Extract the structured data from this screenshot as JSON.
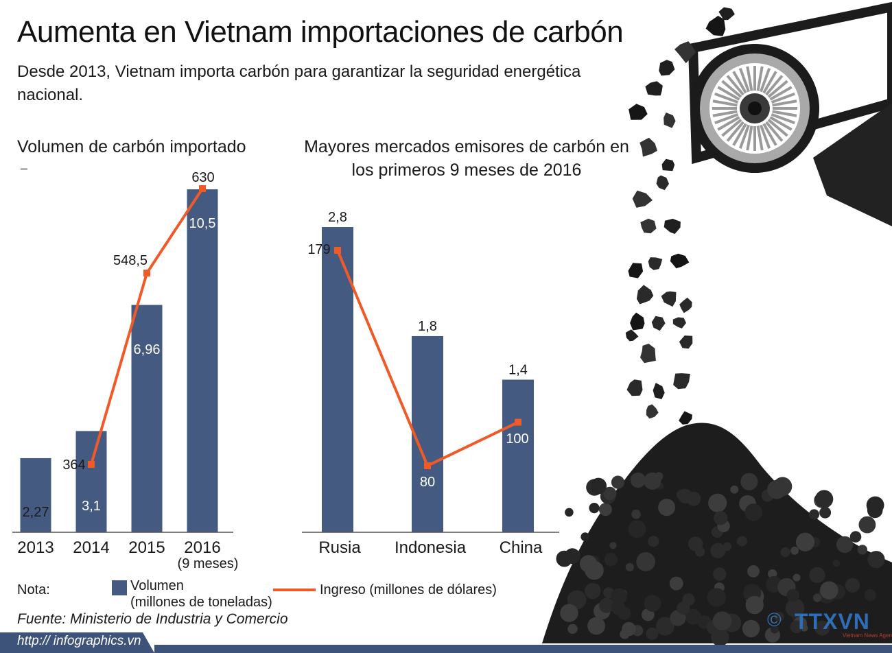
{
  "title": "Aumenta en Vietnam importaciones de carbón",
  "subtitle": "Desde 2013, Vietnam importa carbón para garantizar la seguridad energética nacional.",
  "legend": {
    "label": "Nota:",
    "volume": "Volumen",
    "volume_unit": "(millones de toneladas)",
    "income": "Ingreso (millones de dólares)"
  },
  "source": "Fuente: Ministerio de Industria y Comercio",
  "url": "http:// infographics.vn",
  "logo": {
    "symbol": "©",
    "text": "TTXVN",
    "sub": "Vietnam News Agency"
  },
  "colors": {
    "bar": "#445a80",
    "line": "#f05a28",
    "coal": "#1c1c1c",
    "footer": "#3d5379"
  },
  "chart_data": [
    {
      "type": "bar",
      "title": "Volumen de carbón importado",
      "subnote": "–",
      "categories": [
        "2013",
        "2014",
        "2015",
        "2016"
      ],
      "category_notes": [
        "",
        "",
        "",
        "(9 meses)"
      ],
      "series": [
        {
          "name": "Volumen",
          "type": "bar",
          "values": [
            2.27,
            3.1,
            6.96,
            10.5
          ],
          "labels": [
            "2,27",
            "3,1",
            "6,96",
            "10,5"
          ]
        },
        {
          "name": "Ingreso",
          "type": "line",
          "values": [
            null,
            364,
            548.5,
            630
          ],
          "labels": [
            "",
            "364",
            "548,5",
            "630"
          ]
        }
      ]
    },
    {
      "type": "bar",
      "title": "Mayores mercados emisores de carbón en los primeros 9 meses de 2016",
      "categories": [
        "Rusia",
        "Indonesia",
        "China"
      ],
      "series": [
        {
          "name": "Volumen",
          "type": "bar",
          "values": [
            2.8,
            1.8,
            1.4
          ],
          "labels": [
            "2,8",
            "1,8",
            "1,4"
          ]
        },
        {
          "name": "Ingreso",
          "type": "line",
          "values": [
            179,
            80,
            100
          ],
          "labels": [
            "179",
            "80",
            "100"
          ]
        }
      ]
    }
  ]
}
